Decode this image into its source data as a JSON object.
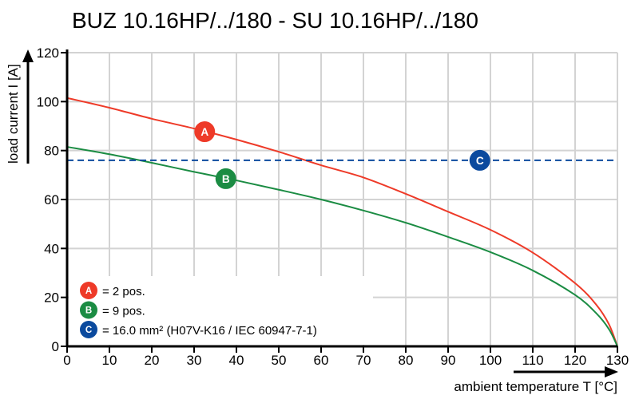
{
  "chart_data": {
    "type": "line",
    "title": "BUZ 10.16HP/../180 - SU 10.16HP/../180",
    "xlabel": "ambient temperature T [°C]",
    "ylabel": "load current I [A]",
    "xlim": [
      0,
      130
    ],
    "ylim": [
      0,
      120
    ],
    "xticks": [
      "0",
      "10",
      "20",
      "30",
      "40",
      "50",
      "60",
      "70",
      "80",
      "90",
      "100",
      "110",
      "120",
      "130"
    ],
    "yticks": [
      "0",
      "20",
      "40",
      "60",
      "80",
      "100",
      "120"
    ],
    "grid": true,
    "legend_position": "bottom-left",
    "series": [
      {
        "marker": "A",
        "color": "#ee3a28",
        "x": [
          0,
          10,
          20,
          30,
          40,
          50,
          60,
          70,
          80,
          90,
          100,
          110,
          120,
          125,
          128,
          130
        ],
        "y": [
          101.5,
          97.5,
          93,
          89,
          84.5,
          79.5,
          74,
          69,
          62.3,
          55,
          47.6,
          38.3,
          25.8,
          17,
          9,
          0
        ],
        "marker_at": [
          32.5,
          87.7
        ]
      },
      {
        "marker": "B",
        "color": "#1b8c43",
        "x": [
          0,
          10,
          20,
          30,
          40,
          50,
          60,
          70,
          80,
          90,
          100,
          110,
          120,
          125,
          128,
          130
        ],
        "y": [
          81.5,
          78.5,
          75,
          71.3,
          67.8,
          64,
          60,
          55.5,
          50.5,
          44.7,
          38.5,
          31,
          21,
          13.5,
          7,
          0
        ],
        "marker_at": [
          37.5,
          68.5
        ]
      },
      {
        "marker": "C",
        "color": "#0b4a9e",
        "style": "dashed",
        "x": [
          0,
          130
        ],
        "y": [
          76,
          76
        ],
        "marker_at": [
          97.5,
          76
        ]
      }
    ],
    "legend": [
      {
        "marker": "A",
        "color": "#ee3a28",
        "text": "= 2 pos."
      },
      {
        "marker": "B",
        "color": "#1b8c43",
        "text": "= 9 pos."
      },
      {
        "marker": "C",
        "color": "#0b4a9e",
        "text": "= 16.0 mm² (H07V-K16 / IEC 60947-7-1)"
      }
    ]
  }
}
